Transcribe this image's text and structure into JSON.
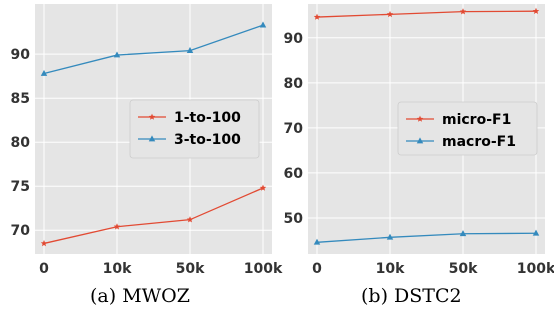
{
  "chart_data": [
    {
      "type": "line",
      "caption": "(a) MWOZ",
      "categories": [
        "0",
        "10k",
        "50k",
        "100k"
      ],
      "yticks": [
        70,
        75,
        80,
        85,
        90
      ],
      "ylim": [
        67.3,
        95.7
      ],
      "grid": true,
      "legend_position": "center-right",
      "series": [
        {
          "name": "1-to-100",
          "color": "#e24a33",
          "marker": "star",
          "values": [
            68.5,
            70.4,
            71.2,
            74.8
          ]
        },
        {
          "name": "3-to-100",
          "color": "#348abd",
          "marker": "triangle",
          "values": [
            87.8,
            89.9,
            90.4,
            93.3
          ]
        }
      ]
    },
    {
      "type": "line",
      "caption": "(b) DSTC2",
      "categories": [
        "0",
        "10k",
        "50k",
        "100k"
      ],
      "yticks": [
        50,
        60,
        70,
        80,
        90
      ],
      "ylim": [
        42,
        97.5
      ],
      "grid": true,
      "legend_position": "center-right",
      "series": [
        {
          "name": "micro-F1",
          "color": "#e24a33",
          "marker": "star",
          "values": [
            94.6,
            95.2,
            95.8,
            95.9
          ]
        },
        {
          "name": "macro-F1",
          "color": "#348abd",
          "marker": "triangle",
          "values": [
            44.6,
            45.7,
            46.5,
            46.6
          ]
        }
      ]
    }
  ]
}
